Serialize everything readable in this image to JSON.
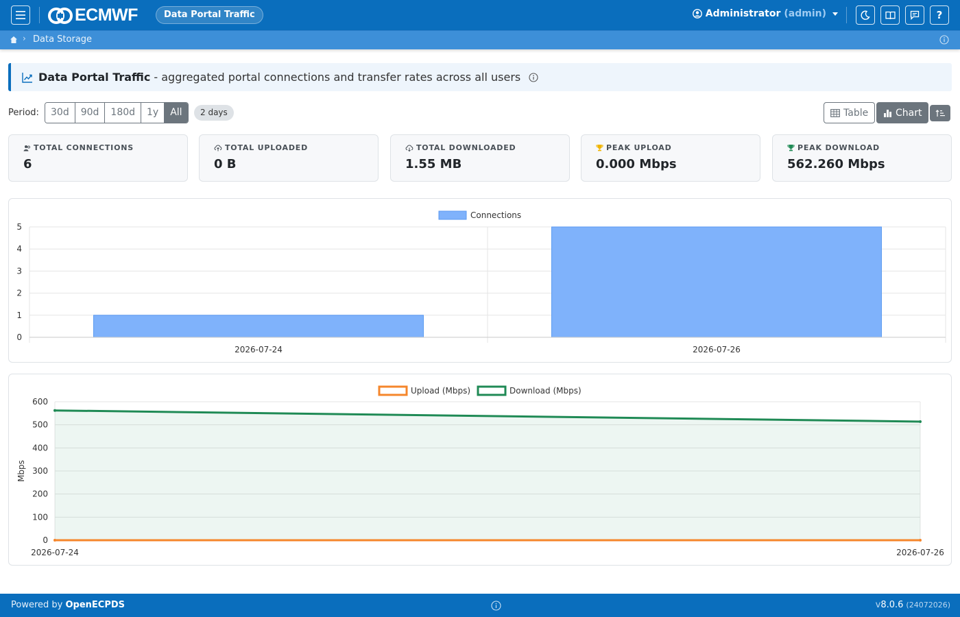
{
  "navbar": {
    "logo_text": "ECMWF",
    "app_title": "Data Portal Traffic",
    "user_name": "Administrator",
    "user_role": "(admin)",
    "icons": [
      "menu-icon",
      "moon-icon",
      "book-icon",
      "chat-icon",
      "help-icon"
    ],
    "help_glyph": "?"
  },
  "breadcrumb": {
    "items": [
      "Data Storage"
    ]
  },
  "banner": {
    "title": "Data Portal Traffic",
    "description": "- aggregated portal connections and transfer rates across all users"
  },
  "period": {
    "label": "Period:",
    "options": [
      "30d",
      "90d",
      "180d",
      "1y",
      "All"
    ],
    "selected": "All",
    "span_badge": "2 days"
  },
  "view_toggle": {
    "table_label": "Table",
    "chart_label": "Chart",
    "selected": "Chart"
  },
  "stats": [
    {
      "label": "TOTAL CONNECTIONS",
      "value": "6",
      "icon": "users-icon"
    },
    {
      "label": "TOTAL UPLOADED",
      "value": "0 B",
      "icon": "cloud-upload-icon"
    },
    {
      "label": "TOTAL DOWNLOADED",
      "value": "1.55 MB",
      "icon": "cloud-download-icon"
    },
    {
      "label": "PEAK UPLOAD",
      "value": "0.000 Mbps",
      "icon": "trophy-icon"
    },
    {
      "label": "PEAK DOWNLOAD",
      "value": "562.260 Mbps",
      "icon": "trophy-icon"
    }
  ],
  "colors": {
    "brand": "#0a6ebd",
    "connections_bar": "#7fb2fb",
    "upload_line": "#f5862b",
    "download_line": "#1f8a55",
    "peak_upload_icon": "#f0b400",
    "peak_download_icon": "#1f8a55"
  },
  "chart_data": [
    {
      "type": "bar",
      "categories": [
        "2026-07-24",
        "2026-07-26"
      ],
      "series": [
        {
          "name": "Connections",
          "values": [
            1,
            5
          ]
        }
      ],
      "ylim": [
        0,
        5
      ],
      "yticks": [
        0,
        1,
        2,
        3,
        4,
        5
      ],
      "xlabel": "",
      "ylabel": "",
      "legend": "top-center",
      "grid": true
    },
    {
      "type": "line",
      "x": [
        "2026-07-24",
        "2026-07-26"
      ],
      "series": [
        {
          "name": "Upload (Mbps)",
          "values": [
            0,
            0
          ]
        },
        {
          "name": "Download (Mbps)",
          "values": [
            562.26,
            514
          ]
        }
      ],
      "ylim": [
        0,
        600
      ],
      "yticks": [
        0,
        100,
        200,
        300,
        400,
        500,
        600
      ],
      "xlabel": "",
      "ylabel": "Mbps",
      "legend": "top-center",
      "grid": true,
      "fill_download": true
    }
  ],
  "footer": {
    "powered_prefix": "Powered by",
    "powered_name": "OpenECPDS",
    "version_prefix": "v",
    "version": "8.0.6",
    "build": "(24072026)"
  }
}
